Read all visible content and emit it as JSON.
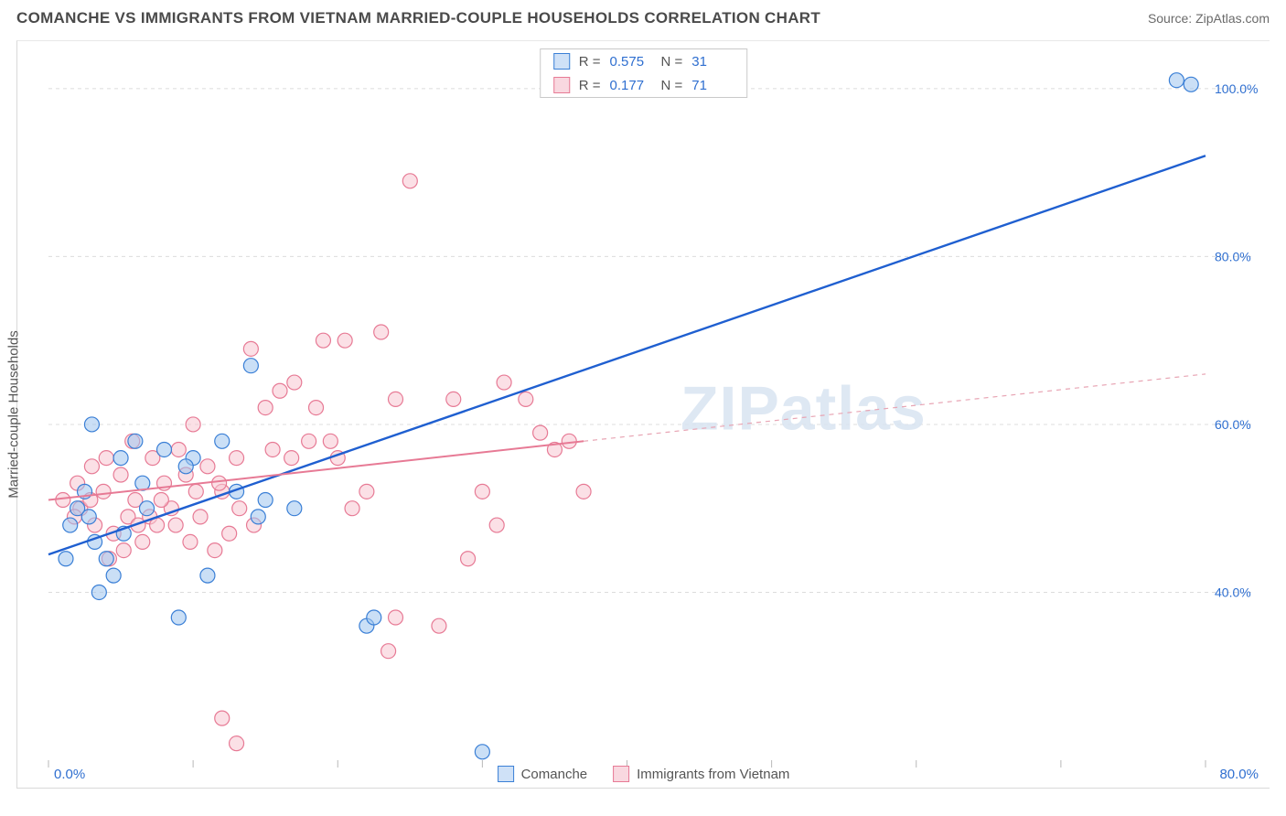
{
  "header": {
    "title": "COMANCHE VS IMMIGRANTS FROM VIETNAM MARRIED-COUPLE HOUSEHOLDS CORRELATION CHART",
    "source": "Source: ZipAtlas.com"
  },
  "ylabel": "Married-couple Households",
  "watermark": "ZIPatlas",
  "legend_top": {
    "series": [
      {
        "swatch": "blue",
        "r_label": "R =",
        "r_value": "0.575",
        "n_label": "N =",
        "n_value": "31"
      },
      {
        "swatch": "pink",
        "r_label": "R =",
        "r_value": "0.177",
        "n_label": "N =",
        "n_value": "71"
      }
    ]
  },
  "legend_bottom": {
    "series": [
      {
        "swatch": "blue",
        "label": "Comanche"
      },
      {
        "swatch": "pink",
        "label": "Immigrants from Vietnam"
      }
    ]
  },
  "chart": {
    "type": "scatter",
    "xlim": [
      0,
      80
    ],
    "ylim": [
      20,
      105
    ],
    "background_color": "#ffffff",
    "grid_color": "#dcdcdc",
    "marker_radius": 8,
    "y_ticks": [
      40,
      60,
      80,
      100
    ],
    "y_tick_labels": [
      "40.0%",
      "60.0%",
      "80.0%",
      "100.0%"
    ],
    "x_tick_positions": [
      0,
      10,
      20,
      30,
      40,
      50,
      60,
      70,
      80
    ],
    "x_axis_left_label": "0.0%",
    "x_axis_right_label": "80.0%",
    "series_blue": {
      "color_fill": "#9fc4ef",
      "color_stroke": "#3a7fd6",
      "points": [
        [
          1.5,
          48
        ],
        [
          3,
          60
        ],
        [
          4,
          44
        ],
        [
          2,
          50
        ],
        [
          2.5,
          52
        ],
        [
          5,
          56
        ],
        [
          6,
          58
        ],
        [
          8,
          57
        ],
        [
          4.5,
          42
        ],
        [
          3.5,
          40
        ],
        [
          10,
          56
        ],
        [
          12,
          58
        ],
        [
          14,
          67
        ],
        [
          11,
          42
        ],
        [
          9,
          37
        ],
        [
          15,
          51
        ],
        [
          17,
          50
        ],
        [
          13,
          52
        ],
        [
          14.5,
          49
        ],
        [
          30,
          21
        ],
        [
          22,
          36
        ],
        [
          22.5,
          37
        ],
        [
          78,
          101
        ],
        [
          79,
          100.5
        ],
        [
          6.5,
          53
        ],
        [
          3.2,
          46
        ],
        [
          1.2,
          44
        ],
        [
          5.2,
          47
        ],
        [
          2.8,
          49
        ],
        [
          6.8,
          50
        ],
        [
          9.5,
          55
        ]
      ],
      "trend": {
        "x1": 0,
        "y1": 44.5,
        "x2": 80,
        "y2": 92,
        "color": "#1f5fd0",
        "width": 2.4
      }
    },
    "series_pink": {
      "color_fill": "#f7c6d1",
      "color_stroke": "#e77a95",
      "points": [
        [
          1,
          51
        ],
        [
          2,
          53
        ],
        [
          3,
          55
        ],
        [
          4,
          56
        ],
        [
          5,
          54
        ],
        [
          6,
          51
        ],
        [
          7,
          49
        ],
        [
          8,
          53
        ],
        [
          9,
          57
        ],
        [
          10,
          60
        ],
        [
          11,
          55
        ],
        [
          12,
          52
        ],
        [
          13,
          56
        ],
        [
          14,
          69
        ],
        [
          15,
          62
        ],
        [
          16,
          64
        ],
        [
          17,
          65
        ],
        [
          18,
          58
        ],
        [
          19,
          70
        ],
        [
          20,
          56
        ],
        [
          21,
          50
        ],
        [
          22,
          52
        ],
        [
          23,
          71
        ],
        [
          24,
          63
        ],
        [
          25,
          89
        ],
        [
          28,
          63
        ],
        [
          29,
          44
        ],
        [
          30,
          52
        ],
        [
          31,
          48
        ],
        [
          34,
          59
        ],
        [
          35,
          57
        ],
        [
          4.5,
          47
        ],
        [
          5.5,
          49
        ],
        [
          6.5,
          46
        ],
        [
          7.5,
          48
        ],
        [
          8.5,
          50
        ],
        [
          9.5,
          54
        ],
        [
          10.5,
          49
        ],
        [
          11.5,
          45
        ],
        [
          12.5,
          47
        ],
        [
          3.8,
          52
        ],
        [
          2.2,
          50
        ],
        [
          1.8,
          49
        ],
        [
          2.9,
          51
        ],
        [
          12,
          25
        ],
        [
          13,
          22
        ],
        [
          23.5,
          33
        ],
        [
          24,
          37
        ],
        [
          27,
          36
        ],
        [
          5.8,
          58
        ],
        [
          7.2,
          56
        ],
        [
          8.8,
          48
        ],
        [
          9.8,
          46
        ],
        [
          10.2,
          52
        ],
        [
          11.8,
          53
        ],
        [
          13.2,
          50
        ],
        [
          14.2,
          48
        ],
        [
          15.5,
          57
        ],
        [
          16.8,
          56
        ],
        [
          18.5,
          62
        ],
        [
          19.5,
          58
        ],
        [
          20.5,
          70
        ],
        [
          31.5,
          65
        ],
        [
          33,
          63
        ],
        [
          36,
          58
        ],
        [
          37,
          52
        ],
        [
          4.2,
          44
        ],
        [
          5.2,
          45
        ],
        [
          6.2,
          48
        ],
        [
          7.8,
          51
        ],
        [
          3.2,
          48
        ]
      ],
      "trend_solid": {
        "x1": 0,
        "y1": 51,
        "x2": 37,
        "y2": 58,
        "color": "#e77a95",
        "width": 2
      },
      "trend_dash": {
        "x1": 37,
        "y1": 58,
        "x2": 80,
        "y2": 66,
        "color": "#e8a5b4",
        "width": 1.2
      }
    }
  }
}
